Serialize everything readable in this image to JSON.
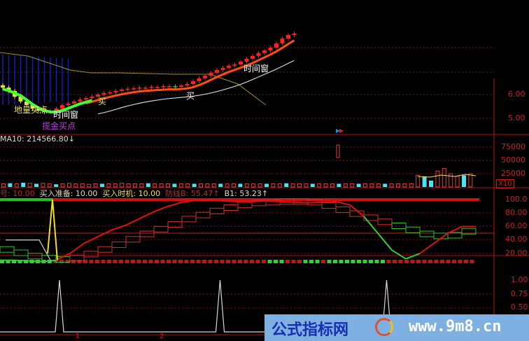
{
  "chart_data": [
    {
      "type": "candlestick",
      "panel": "price",
      "y_ticks": [
        "6.00",
        "5.00"
      ],
      "closes": [
        6.29,
        6.15,
        5.91,
        5.71,
        5.56,
        5.41,
        5.32,
        5.26,
        5.32,
        5.41,
        5.56,
        5.62,
        5.71,
        5.79,
        5.85,
        5.91,
        6.0,
        6.06,
        6.09,
        6.15,
        6.21,
        6.24,
        6.26,
        6.29,
        6.29,
        6.32,
        6.32,
        6.35,
        6.35,
        6.32,
        6.38,
        6.44,
        6.56,
        6.68,
        6.79,
        6.91,
        7.03,
        7.12,
        7.21,
        7.26,
        7.38,
        7.5,
        7.62,
        7.74,
        7.85,
        7.97,
        8.15,
        8.35,
        8.5,
        8.56
      ],
      "annotations": [
        {
          "text": "地量买点",
          "color": "#e8e070"
        },
        {
          "text": "时间窗",
          "color": "#ffffff"
        },
        {
          "text": "揽金买点",
          "color": "#c040e0"
        },
        {
          "text": "买",
          "color": "#e8e070"
        },
        {
          "text": "买",
          "color": "#ffffff"
        },
        {
          "text": "时间窗",
          "color": "#ffffff"
        }
      ],
      "colors": {
        "up": "#ff2020",
        "down": "#20d020",
        "ma_fast": "#ff5010",
        "ma_slow": "#d0d0d0",
        "ma_green": "#40ff30"
      }
    },
    {
      "type": "bar",
      "panel": "volume",
      "header": "MA10: 214566.80↓",
      "y_ticks": [
        "75000",
        "50000",
        "25000"
      ],
      "unit_badge": "X10",
      "values": [
        6000,
        -7000,
        6000,
        -8000,
        7000,
        -6000,
        7000,
        6000,
        -5000,
        6000,
        7000,
        6000,
        6000,
        5000,
        6000,
        -6000,
        6000,
        6000,
        7000,
        6000,
        6000,
        6000,
        -7000,
        6000,
        6000,
        6000,
        -6000,
        6000,
        6000,
        -6000,
        6000,
        6000,
        6000,
        -6000,
        6000,
        6000,
        -6000,
        6000,
        6000,
        6000,
        -6000,
        6000,
        6000,
        -7000,
        6000,
        6000,
        6000,
        -6000,
        6000,
        6000,
        6000,
        -6000,
        6000,
        6000,
        -6000,
        6000,
        6000,
        6000,
        -6000,
        6000,
        6000,
        6000,
        6000,
        22000,
        -20000,
        -12000,
        30000,
        35000,
        25000,
        20000,
        -22000,
        25000
      ]
    },
    {
      "type": "line",
      "panel": "indicator",
      "legend": [
        {
          "text": "号: 10.00",
          "color": "#c82020"
        },
        {
          "text": "买入准备: 10.00",
          "color": "#e0d8c0"
        },
        {
          "text": "买入时机: 10.00",
          "color": "#f0e040"
        },
        {
          "text": "防线B: 55.47↑",
          "color": "#b03030"
        },
        {
          "text": "B1: 53.23↑",
          "color": "#e0d8c0"
        }
      ],
      "y_ticks": [
        "100.0",
        "80.00",
        "60.00",
        "40.00",
        "20.00"
      ],
      "ylim": [
        10,
        100
      ],
      "main_line": [
        10,
        10,
        9,
        8,
        10,
        20,
        35,
        45,
        55,
        62,
        72,
        82,
        90,
        96,
        99,
        99,
        98,
        97,
        97,
        98,
        97,
        96,
        95,
        96,
        97,
        92,
        75,
        50,
        25,
        12,
        20,
        35,
        50,
        60,
        60
      ],
      "main_line_green_ranges": [
        [
          0,
          4
        ],
        [
          26,
          30
        ]
      ],
      "step_line": [
        25,
        20,
        15,
        12,
        10,
        12,
        18,
        25,
        32,
        40,
        48,
        55,
        62,
        70,
        76,
        82,
        87,
        91,
        94,
        95,
        96,
        96,
        95,
        90,
        84,
        78,
        72,
        66,
        60,
        54,
        48,
        45,
        46,
        52,
        55
      ],
      "white_line": [
        40,
        40,
        40,
        40,
        10
      ],
      "yellow_spike": [
        20,
        100,
        10
      ]
    },
    {
      "type": "line",
      "panel": "signal",
      "y_ticks": [
        "1.00",
        "0.75",
        "0.50"
      ],
      "spike_bars": [
        10,
        37,
        65
      ],
      "x_ticks": [
        "1",
        "2"
      ]
    }
  ],
  "watermark": {
    "text_cn": "公式指标网",
    "url": "www.9m8.cn"
  }
}
